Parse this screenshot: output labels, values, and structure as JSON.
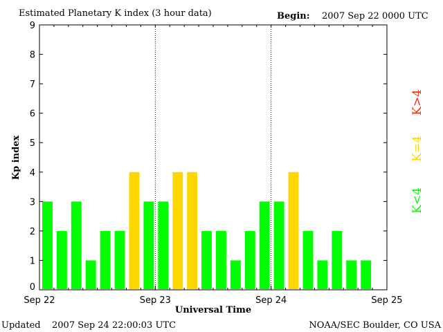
{
  "header": {
    "title": "Estimated Planetary K index (3 hour data)",
    "begin_label": "Begin:",
    "begin_value": "2007 Sep 22 0000 UTC"
  },
  "footer": {
    "updated_label": "Updated",
    "updated_value": "2007 Sep 24 22:00:03 UTC",
    "source": "NOAA/SEC Boulder, CO USA"
  },
  "colors": {
    "below4": "#00ff00",
    "equal4": "#ffd700",
    "above4": "#ff2a00"
  },
  "chart_data": {
    "type": "bar",
    "title": "Estimated Planetary K index (3 hour data)",
    "xlabel": "Universal Time",
    "ylabel": "Kp index",
    "ylim": [
      0,
      9
    ],
    "yticks": [
      "0",
      "1",
      "2",
      "3",
      "4",
      "5",
      "6",
      "7",
      "8",
      "9"
    ],
    "xticks": [
      "Sep 22",
      "Sep 23",
      "Sep 24",
      "Sep 25"
    ],
    "day_separators": true,
    "grid": false,
    "bins_per_day": 8,
    "values": [
      3,
      2,
      3,
      1,
      2,
      2,
      4,
      3,
      3,
      4,
      4,
      2,
      2,
      1,
      2,
      3,
      3,
      4,
      2,
      1,
      2,
      1,
      1
    ],
    "legend": {
      "placement": "right",
      "entries": [
        {
          "label": "K<4",
          "color": "#00ff00"
        },
        {
          "label": "K=4",
          "color": "#ffd700"
        },
        {
          "label": "K>4",
          "color": "#ff2a00"
        }
      ]
    }
  }
}
